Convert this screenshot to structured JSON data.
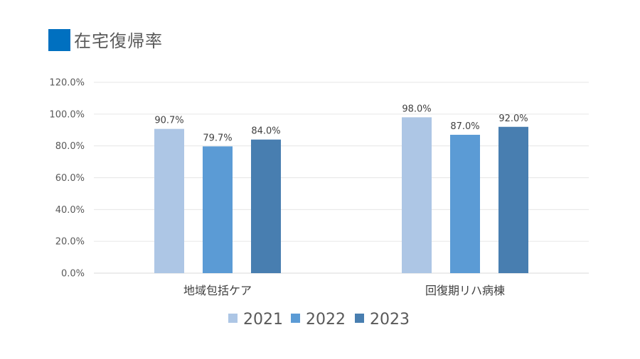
{
  "title": {
    "text": "在宅復帰率",
    "accent_color": "#0070c0"
  },
  "chart_data": {
    "type": "bar",
    "title": "在宅復帰率",
    "categories": [
      "地域包括ケア",
      "回復期リハ病棟"
    ],
    "series": [
      {
        "name": "2021",
        "color": "#adc6e5",
        "values": [
          90.7,
          98.0
        ],
        "labels": [
          "90.7%",
          "98.0%"
        ]
      },
      {
        "name": "2022",
        "color": "#5b9bd5",
        "values": [
          79.7,
          87.0
        ],
        "labels": [
          "79.7%",
          "87.0%"
        ]
      },
      {
        "name": "2023",
        "color": "#487eb0",
        "values": [
          84.0,
          92.0
        ],
        "labels": [
          "84.0%",
          "92.0%"
        ]
      }
    ],
    "ylim": [
      0,
      120
    ],
    "yticks": [
      0,
      20,
      40,
      60,
      80,
      100,
      120
    ],
    "ytick_labels": [
      "0.0%",
      "20.0%",
      "40.0%",
      "60.0%",
      "80.0%",
      "100.0%",
      "120.0%"
    ],
    "xlabel": "",
    "ylabel": "",
    "grid": true,
    "legend_position": "bottom-center"
  }
}
